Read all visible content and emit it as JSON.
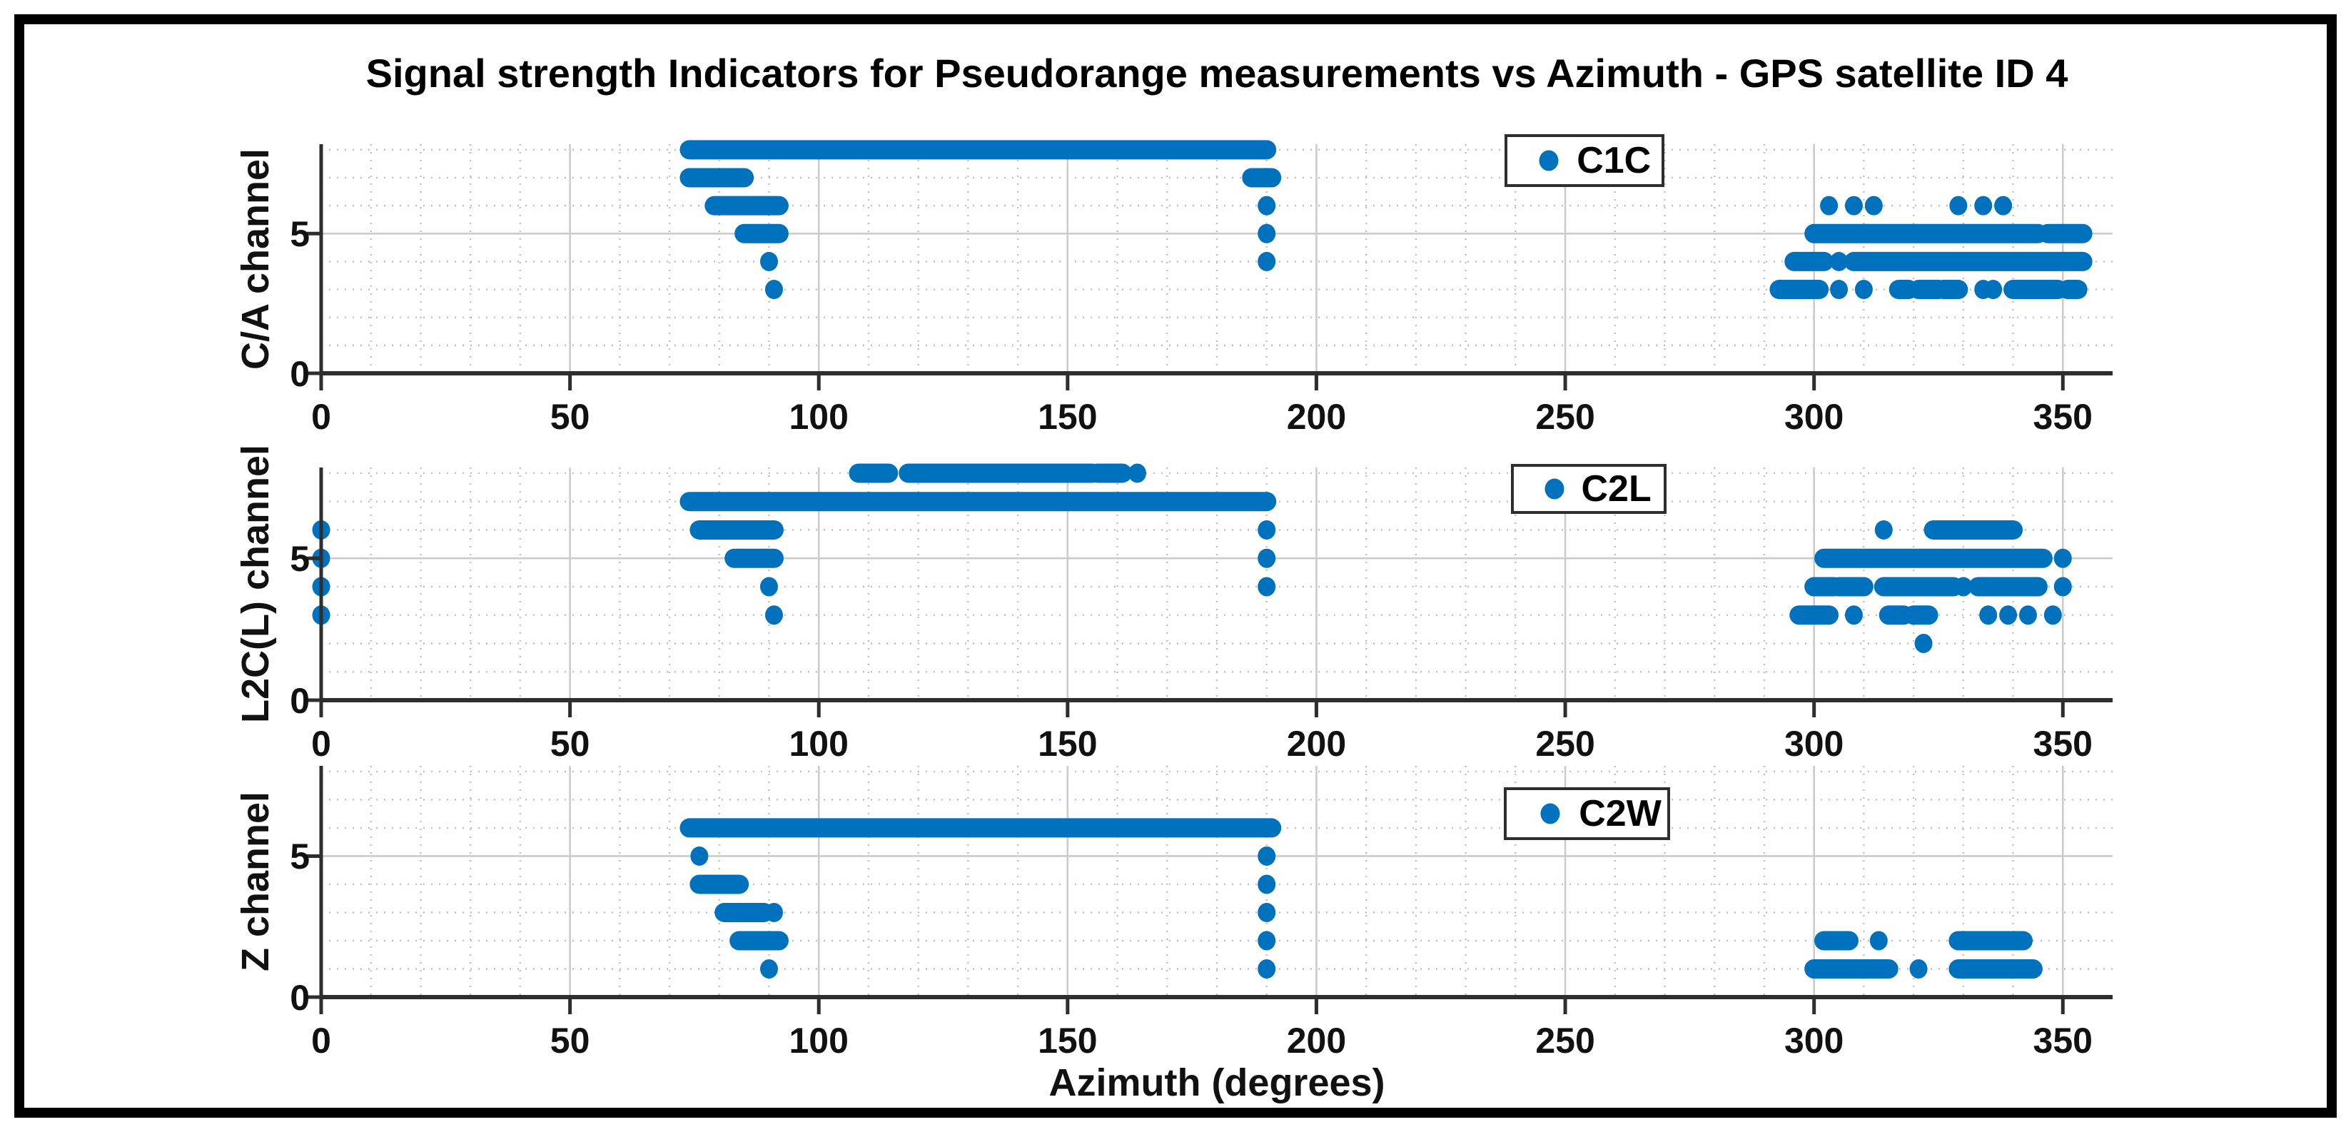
{
  "figure": {
    "title": "Signal strength Indicators for Pseudorange measurements vs Azimuth - GPS satellite ID 4",
    "xlabel": "Azimuth (degrees)"
  },
  "colors": {
    "marker": "#0072BD",
    "axis": "#2e2e2e",
    "grid_major": "#cccccc",
    "grid_minor": "#b5b5b5",
    "text": "#111111",
    "legend_border": "#2e2e2e",
    "frame": "#000000"
  },
  "chart_data": [
    {
      "type": "scatter",
      "ylabel": "C/A channel",
      "legend": "C1C",
      "xlim": [
        0,
        360
      ],
      "ylim": [
        0,
        8.2
      ],
      "xticks": [
        0,
        50,
        100,
        150,
        200,
        250,
        300,
        350
      ],
      "yticks": [
        0,
        5
      ],
      "x_minor_step": 10,
      "y_minor_step": 1,
      "segments": [
        [
          8,
          74,
          190
        ],
        [
          7,
          74,
          85
        ],
        [
          7,
          187,
          191
        ],
        [
          6,
          79,
          92
        ],
        [
          5,
          85,
          92
        ],
        [
          5,
          300,
          345
        ],
        [
          5,
          347,
          354
        ],
        [
          4,
          296,
          302
        ],
        [
          4,
          308,
          354
        ],
        [
          3,
          293,
          301
        ],
        [
          3,
          317,
          319
        ],
        [
          3,
          321,
          325
        ],
        [
          3,
          326,
          329
        ],
        [
          3,
          340,
          349
        ],
        [
          3,
          351,
          353
        ]
      ],
      "points": [
        [
          90,
          4
        ],
        [
          91,
          3
        ],
        [
          190,
          6
        ],
        [
          190,
          5
        ],
        [
          190,
          4
        ],
        [
          303,
          6
        ],
        [
          308,
          6
        ],
        [
          312,
          6
        ],
        [
          329,
          6
        ],
        [
          334,
          6
        ],
        [
          338,
          6
        ],
        [
          305,
          4
        ],
        [
          305,
          3
        ],
        [
          310,
          3
        ],
        [
          334,
          3
        ],
        [
          336,
          3
        ]
      ]
    },
    {
      "type": "scatter",
      "ylabel": "L2C(L) channel",
      "legend": "C2L",
      "xlim": [
        0,
        360
      ],
      "ylim": [
        0,
        8.2
      ],
      "xticks": [
        0,
        50,
        100,
        150,
        200,
        250,
        300,
        350
      ],
      "yticks": [
        0,
        5
      ],
      "x_minor_step": 10,
      "y_minor_step": 1,
      "segments": [
        [
          8,
          108,
          114
        ],
        [
          8,
          118,
          155
        ],
        [
          8,
          156,
          161
        ],
        [
          7,
          74,
          190
        ],
        [
          6,
          76,
          91
        ],
        [
          5,
          83,
          91
        ],
        [
          6,
          324,
          340
        ],
        [
          5,
          302,
          346
        ],
        [
          4,
          300,
          304
        ],
        [
          4,
          305,
          310
        ],
        [
          4,
          314,
          328
        ],
        [
          4,
          333,
          345
        ],
        [
          3,
          297,
          303
        ],
        [
          3,
          315,
          318
        ],
        [
          3,
          320,
          323
        ]
      ],
      "points": [
        [
          0,
          6
        ],
        [
          0,
          5
        ],
        [
          0,
          4
        ],
        [
          0,
          3
        ],
        [
          164,
          8
        ],
        [
          90,
          4
        ],
        [
          91,
          3
        ],
        [
          190,
          6
        ],
        [
          190,
          5
        ],
        [
          190,
          4
        ],
        [
          314,
          6
        ],
        [
          350,
          5
        ],
        [
          330,
          4
        ],
        [
          350,
          4
        ],
        [
          308,
          3
        ],
        [
          335,
          3
        ],
        [
          339,
          3
        ],
        [
          343,
          3
        ],
        [
          348,
          3
        ],
        [
          322,
          2
        ]
      ]
    },
    {
      "type": "scatter",
      "ylabel": "Z channel",
      "legend": "C2W",
      "xlim": [
        0,
        360
      ],
      "ylim": [
        0,
        8.2
      ],
      "xticks": [
        0,
        50,
        100,
        150,
        200,
        250,
        300,
        350
      ],
      "yticks": [
        0,
        5
      ],
      "x_minor_step": 10,
      "y_minor_step": 1,
      "segments": [
        [
          6,
          74,
          191
        ],
        [
          4,
          76,
          84
        ],
        [
          3,
          81,
          89
        ],
        [
          2,
          84,
          92
        ],
        [
          2,
          302,
          307
        ],
        [
          2,
          329,
          342
        ],
        [
          1,
          300,
          315
        ],
        [
          1,
          329,
          344
        ]
      ],
      "points": [
        [
          76,
          5
        ],
        [
          91,
          3
        ],
        [
          90,
          1
        ],
        [
          190,
          5
        ],
        [
          190,
          4
        ],
        [
          190,
          3
        ],
        [
          190,
          2
        ],
        [
          190,
          1
        ],
        [
          313,
          2
        ],
        [
          321,
          1
        ]
      ]
    }
  ]
}
